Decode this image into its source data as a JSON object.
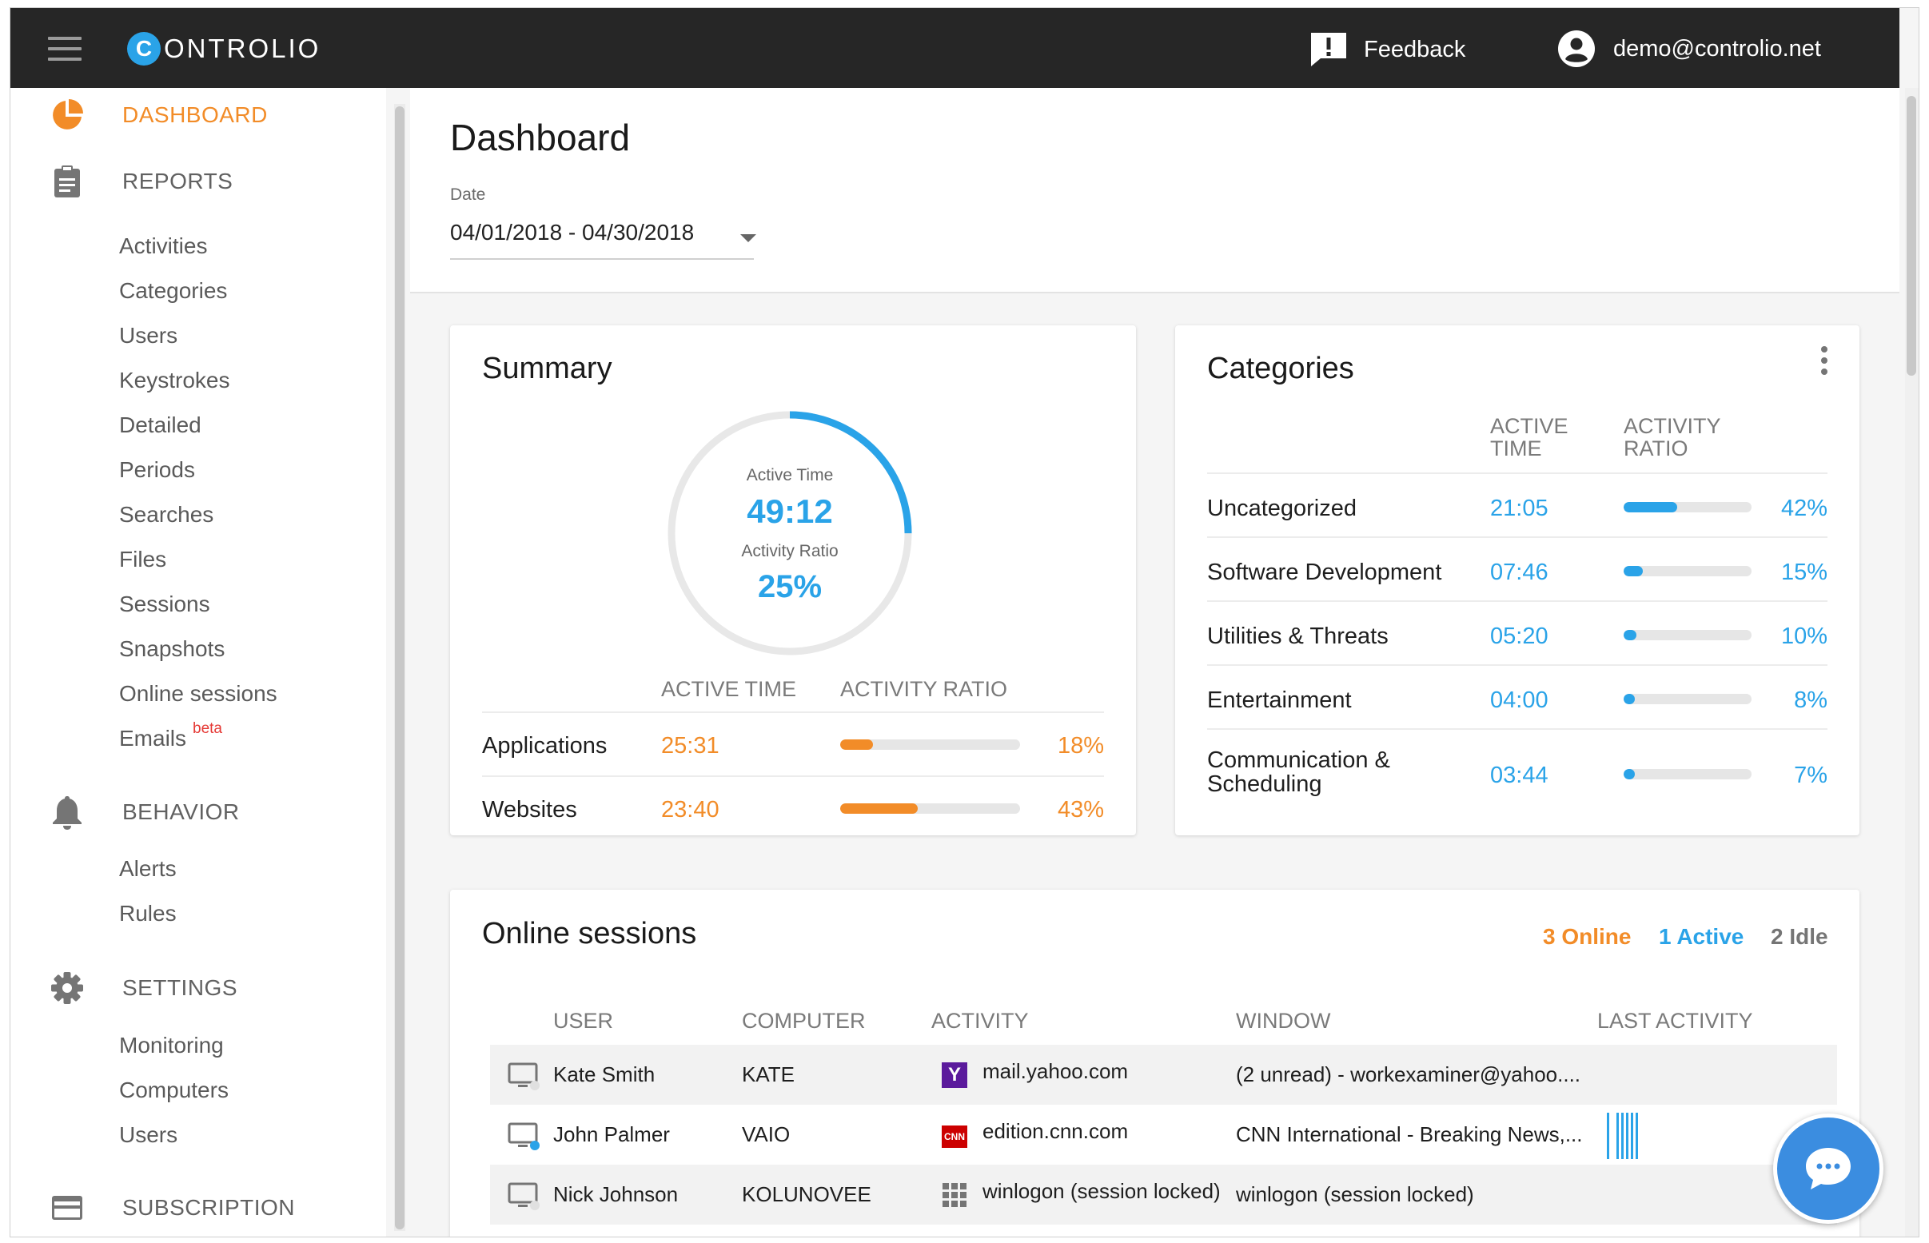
{
  "topbar": {
    "brand_initial": "C",
    "brand_rest": "ONTROLIO",
    "feedback_label": "Feedback",
    "user_email": "demo@controlio.net"
  },
  "sidebar": {
    "dashboard": "DASHBOARD",
    "reports": "REPORTS",
    "report_items": [
      "Activities",
      "Categories",
      "Users",
      "Keystrokes",
      "Detailed",
      "Periods",
      "Searches",
      "Files",
      "Sessions",
      "Snapshots",
      "Online sessions",
      "Emails"
    ],
    "emails_badge": "beta",
    "behavior": "BEHAVIOR",
    "behavior_items": [
      "Alerts",
      "Rules"
    ],
    "settings": "SETTINGS",
    "settings_items": [
      "Monitoring",
      "Computers",
      "Users"
    ],
    "subscription": "SUBSCRIPTION"
  },
  "header": {
    "title": "Dashboard",
    "date_label": "Date",
    "date_value": "04/01/2018 - 04/30/2018"
  },
  "summary": {
    "title": "Summary",
    "ring": {
      "active_time_label": "Active Time",
      "active_time": "49:12",
      "activity_ratio_label": "Activity Ratio",
      "activity_ratio": "25%",
      "fraction": 0.25
    },
    "col_active_time": "ACTIVE TIME",
    "col_activity_ratio": "ACTIVITY RATIO",
    "rows": [
      {
        "name": "Applications",
        "time": "25:31",
        "ratio": "18%",
        "fraction": 0.18
      },
      {
        "name": "Websites",
        "time": "23:40",
        "ratio": "43%",
        "fraction": 0.43
      }
    ]
  },
  "categories": {
    "title": "Categories",
    "col_active_1": "ACTIVE",
    "col_active_2": "TIME",
    "col_ratio_1": "ACTIVITY",
    "col_ratio_2": "RATIO",
    "rows": [
      {
        "name": "Uncategorized",
        "time": "21:05",
        "ratio": "42%",
        "fraction": 0.42
      },
      {
        "name": "Software Development",
        "time": "07:46",
        "ratio": "15%",
        "fraction": 0.15
      },
      {
        "name": "Utilities & Threats",
        "time": "05:20",
        "ratio": "10%",
        "fraction": 0.1
      },
      {
        "name": "Entertainment",
        "time": "04:00",
        "ratio": "8%",
        "fraction": 0.08
      },
      {
        "name_1": "Communication &",
        "name_2": "Scheduling",
        "time": "03:44",
        "ratio": "7%",
        "fraction": 0.07
      }
    ]
  },
  "sessions": {
    "title": "Online sessions",
    "online": "3 Online",
    "active": "1 Active",
    "idle": "2 Idle",
    "columns": [
      "USER",
      "COMPUTER",
      "ACTIVITY",
      "WINDOW",
      "LAST ACTIVITY"
    ],
    "rows": [
      {
        "user": "Kate Smith",
        "computer": "KATE",
        "activity": "mail.yahoo.com",
        "window": "(2 unread) - workexaminer@yahoo....",
        "favicon": "yahoo"
      },
      {
        "user": "John Palmer",
        "computer": "VAIO",
        "activity": "edition.cnn.com",
        "window": "CNN International - Breaking News,...",
        "favicon": "cnn"
      },
      {
        "user": "Nick Johnson",
        "computer": "KOLUNOVEE",
        "activity": "winlogon (session locked)",
        "window": "winlogon (session locked)",
        "favicon": "grid"
      }
    ]
  },
  "colors": {
    "accent_orange": "#f28c28",
    "accent_blue": "#2aa3e8",
    "topbar": "#262626"
  }
}
